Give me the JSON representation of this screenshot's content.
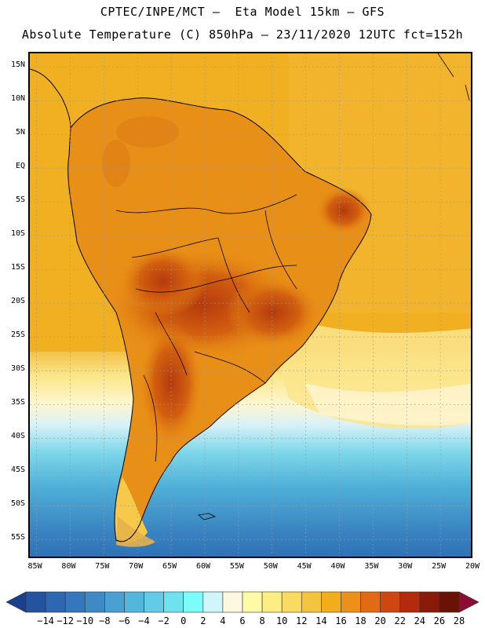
{
  "title": {
    "line1": "CPTEC/INPE/MCT –  Eta Model 15km – GFS",
    "line2": "Absolute Temperature (C) 850hPa – 23/11/2020 12UTC fct=152h"
  },
  "map": {
    "lat_labels": [
      "15N",
      "10N",
      "5N",
      "EQ",
      "5S",
      "10S",
      "15S",
      "20S",
      "25S",
      "30S",
      "35S",
      "40S",
      "45S",
      "50S",
      "55S"
    ],
    "lon_labels": [
      "85W",
      "80W",
      "75W",
      "70W",
      "65W",
      "60W",
      "55W",
      "50W",
      "45W",
      "40W",
      "35W",
      "30W",
      "25W",
      "20W"
    ],
    "lat_range": [
      17,
      -58
    ],
    "lon_range": [
      -86,
      -20
    ]
  },
  "colorbar": {
    "labels": [
      "-14",
      "-12",
      "-10",
      "-8",
      "-6",
      "-4",
      "-2",
      "0",
      "2",
      "4",
      "6",
      "8",
      "10",
      "12",
      "14",
      "16",
      "18",
      "20",
      "22",
      "24",
      "26",
      "28"
    ],
    "colors": [
      "#1a3f8c",
      "#2453a0",
      "#2d66b1",
      "#3577bd",
      "#3e8ac7",
      "#4aa0d1",
      "#55b6dd",
      "#62cbe7",
      "#6ee3ef",
      "#7dfcfc",
      "#cff6fb",
      "#fff8e0",
      "#fffaa6",
      "#fdee84",
      "#f9db62",
      "#f4c43f",
      "#f1ad1c",
      "#ed901a",
      "#e26a14",
      "#cf4710",
      "#b22b0c",
      "#8a1b0a",
      "#6b1206",
      "#8e0b32"
    ]
  }
}
